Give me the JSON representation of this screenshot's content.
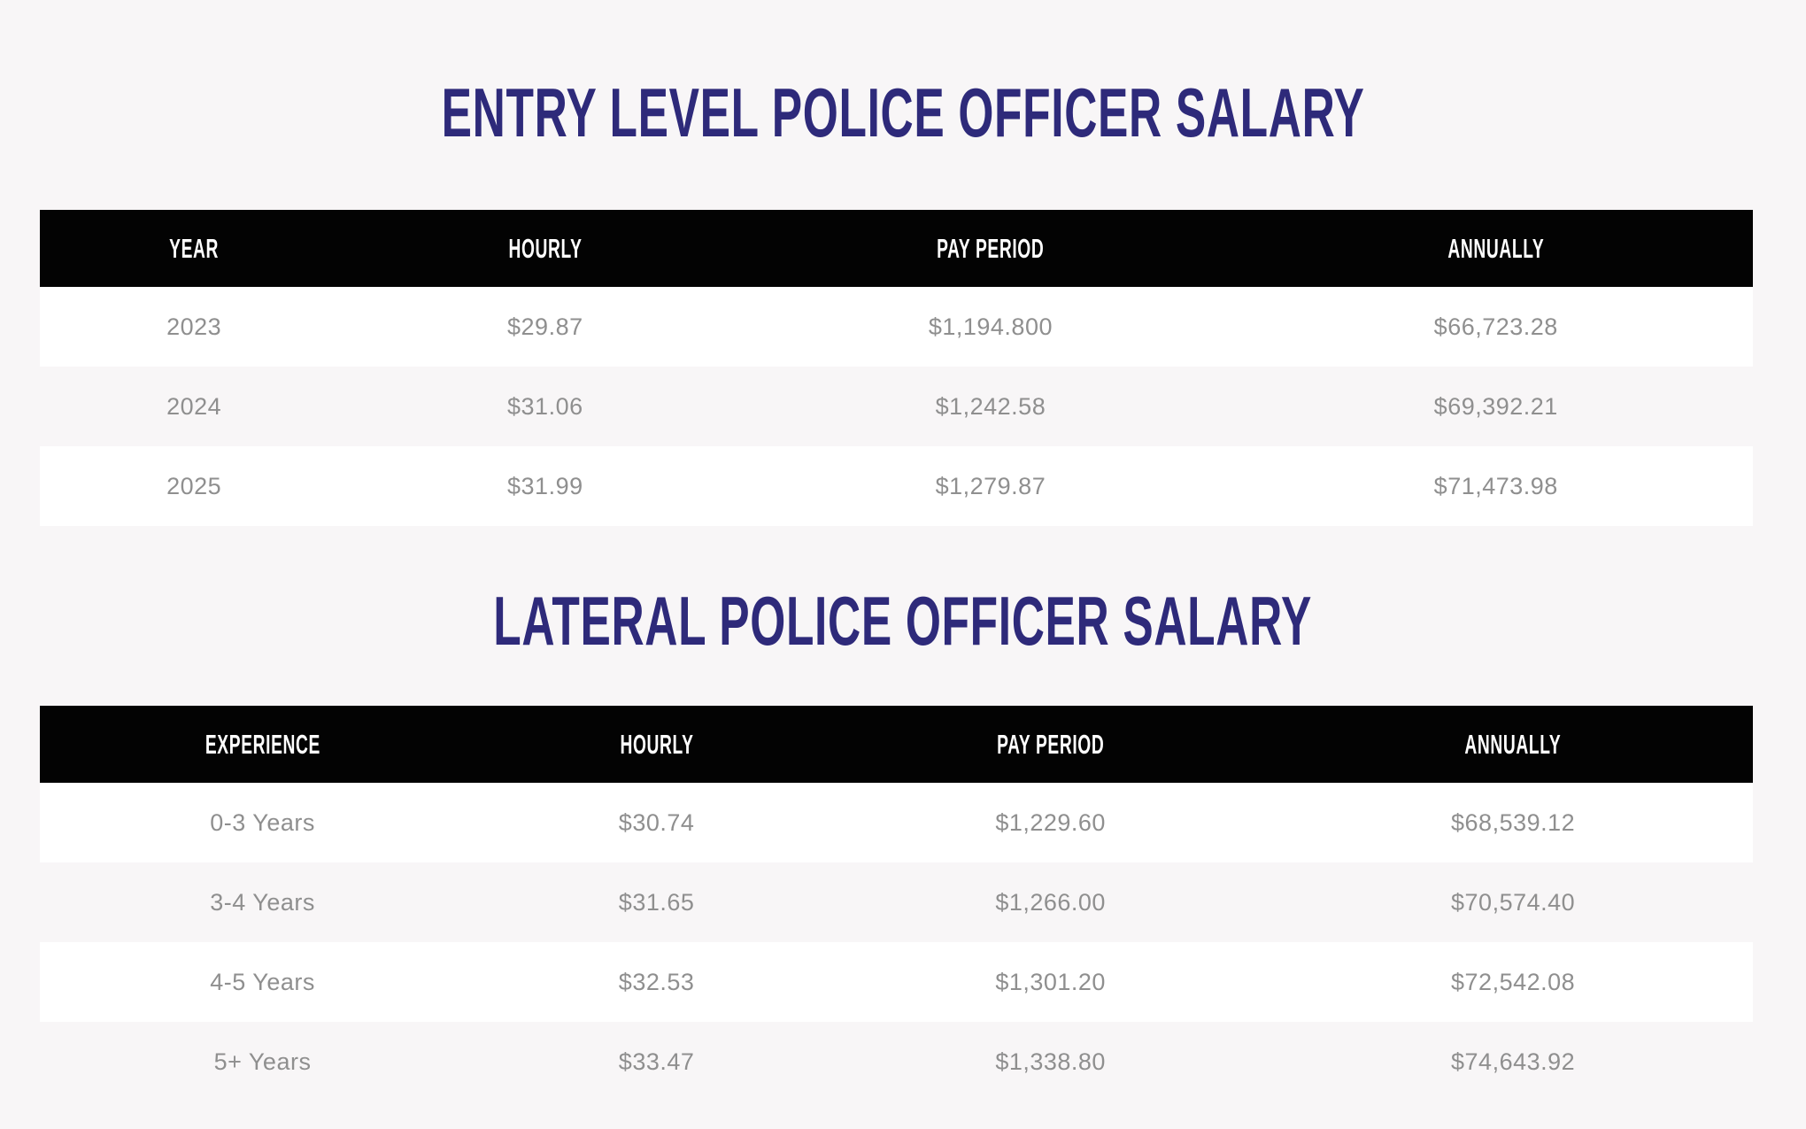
{
  "colors": {
    "page_background": "#f8f6f7",
    "title_color": "#2e2a7a",
    "table_header_background": "#030303",
    "table_header_text": "#ffffff",
    "row_text": "#8f8f8f",
    "row_white": "#ffffff",
    "row_zebra": "#f8f6f7"
  },
  "entry_table": {
    "title": "ENTRY LEVEL POLICE OFFICER SALARY",
    "columns": [
      "YEAR",
      "HOURLY",
      "PAY PERIOD",
      "ANNUALLY"
    ],
    "rows": [
      [
        "2023",
        "$29.87",
        "$1,194.800",
        "$66,723.28"
      ],
      [
        "2024",
        "$31.06",
        "$1,242.58",
        "$69,392.21"
      ],
      [
        "2025",
        "$31.99",
        "$1,279.87",
        "$71,473.98"
      ]
    ]
  },
  "lateral_table": {
    "title": "LATERAL POLICE OFFICER SALARY",
    "columns": [
      "EXPERIENCE",
      "HOURLY",
      "PAY PERIOD",
      "ANNUALLY"
    ],
    "rows": [
      [
        "0-3 Years",
        "$30.74",
        "$1,229.60",
        "$68,539.12"
      ],
      [
        "3-4 Years",
        "$31.65",
        "$1,266.00",
        "$70,574.40"
      ],
      [
        "4-5 Years",
        "$32.53",
        "$1,301.20",
        "$72,542.08"
      ],
      [
        "5+ Years",
        "$33.47",
        "$1,338.80",
        "$74,643.92"
      ]
    ]
  }
}
